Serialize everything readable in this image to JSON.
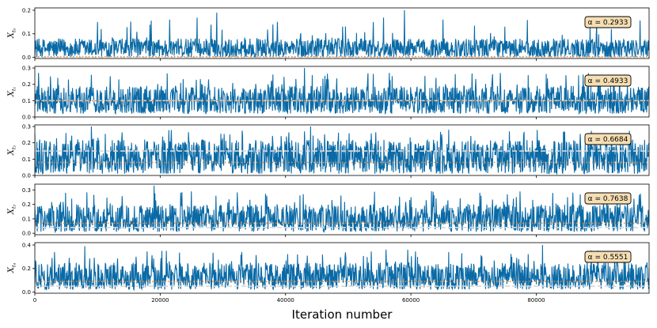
{
  "chart_data": {
    "type": "line",
    "xlabel": "Iteration number",
    "xlim": [
      0,
      98000
    ],
    "x_ticks": [
      0,
      20000,
      40000,
      60000,
      80000
    ],
    "x_tick_labels": [
      "0",
      "20000",
      "40000",
      "60000",
      "80000"
    ],
    "n_iterations": 98000,
    "trace_color": "#0a6aa6",
    "ref_line_color": "#e0904a",
    "panels": [
      {
        "ylabel_main": "X",
        "ylabel_sub": "t₀",
        "alpha_label": "α = 0.2933",
        "ylim": [
          -0.005,
          0.21
        ],
        "yticks": [
          0.0,
          0.1,
          0.2
        ],
        "ytick_labels": [
          "0.0",
          "0.1",
          "0.2"
        ],
        "trace_baseline": 0.0,
        "trace_typical_max": 0.08,
        "trace_peak": 0.2,
        "dashed_line": 0.0,
        "dotted_line": 0.003,
        "spikes": [
          [
            29000,
            0.19
          ],
          [
            59000,
            0.2
          ],
          [
            54000,
            0.15
          ],
          [
            10000,
            0.15
          ],
          [
            38000,
            0.14
          ],
          [
            75000,
            0.13
          ],
          [
            92000,
            0.12
          ]
        ]
      },
      {
        "ylabel_main": "X",
        "ylabel_sub": "t₁",
        "alpha_label": "α = 0.4933",
        "ylim": [
          0.0,
          0.31
        ],
        "yticks": [
          0.0,
          0.1,
          0.2,
          0.3
        ],
        "ytick_labels": [
          "0.0",
          "0.1",
          "0.2",
          "0.3"
        ],
        "trace_baseline": 0.02,
        "trace_typical_max": 0.19,
        "trace_peak": 0.3,
        "dashed_line": 0.1,
        "dotted_line": 0.1,
        "spikes": [
          [
            43000,
            0.3
          ],
          [
            38000,
            0.26
          ],
          [
            57000,
            0.25
          ],
          [
            12000,
            0.25
          ],
          [
            90000,
            0.24
          ],
          [
            64000,
            0.24
          ]
        ]
      },
      {
        "ylabel_main": "X",
        "ylabel_sub": "t₂",
        "alpha_label": "α = 0.6684",
        "ylim": [
          0.0,
          0.31
        ],
        "yticks": [
          0.0,
          0.1,
          0.2,
          0.3
        ],
        "ytick_labels": [
          "0.0",
          "0.1",
          "0.2",
          "0.3"
        ],
        "trace_baseline": 0.01,
        "trace_typical_max": 0.22,
        "trace_peak": 0.3,
        "dashed_line": 0.15,
        "dotted_line": 0.08,
        "spikes": [
          [
            44000,
            0.3
          ],
          [
            9000,
            0.3
          ],
          [
            66000,
            0.28
          ],
          [
            5000,
            0.26
          ],
          [
            78000,
            0.25
          ],
          [
            92000,
            0.24
          ]
        ]
      },
      {
        "ylabel_main": "X",
        "ylabel_sub": "t₃",
        "alpha_label": "α = 0.7638",
        "ylim": [
          -0.01,
          0.34
        ],
        "yticks": [
          0.0,
          0.1,
          0.2,
          0.3
        ],
        "ytick_labels": [
          "0.0",
          "0.1",
          "0.2",
          "0.3"
        ],
        "trace_baseline": 0.01,
        "trace_typical_max": 0.2,
        "trace_peak": 0.33,
        "dashed_line": 0.04,
        "dotted_line": 0.07,
        "spikes": [
          [
            19000,
            0.33
          ],
          [
            25000,
            0.29
          ],
          [
            71000,
            0.28
          ],
          [
            37000,
            0.26
          ],
          [
            60000,
            0.25
          ],
          [
            85000,
            0.25
          ]
        ]
      },
      {
        "ylabel_main": "X",
        "ylabel_sub": "t₄",
        "alpha_label": "α = 0.5551",
        "ylim": [
          -0.01,
          0.42
        ],
        "yticks": [
          0.0,
          0.2,
          0.4
        ],
        "ytick_labels": [
          "0.0",
          "0.2",
          "0.4"
        ],
        "trace_baseline": 0.02,
        "trace_typical_max": 0.25,
        "trace_peak": 0.4,
        "dashed_line": 0.05,
        "dotted_line": 0.09,
        "spikes": [
          [
            81000,
            0.4
          ],
          [
            8000,
            0.39
          ],
          [
            21000,
            0.35
          ],
          [
            56000,
            0.36
          ],
          [
            33000,
            0.34
          ],
          [
            66000,
            0.34
          ],
          [
            94000,
            0.34
          ]
        ]
      }
    ]
  }
}
